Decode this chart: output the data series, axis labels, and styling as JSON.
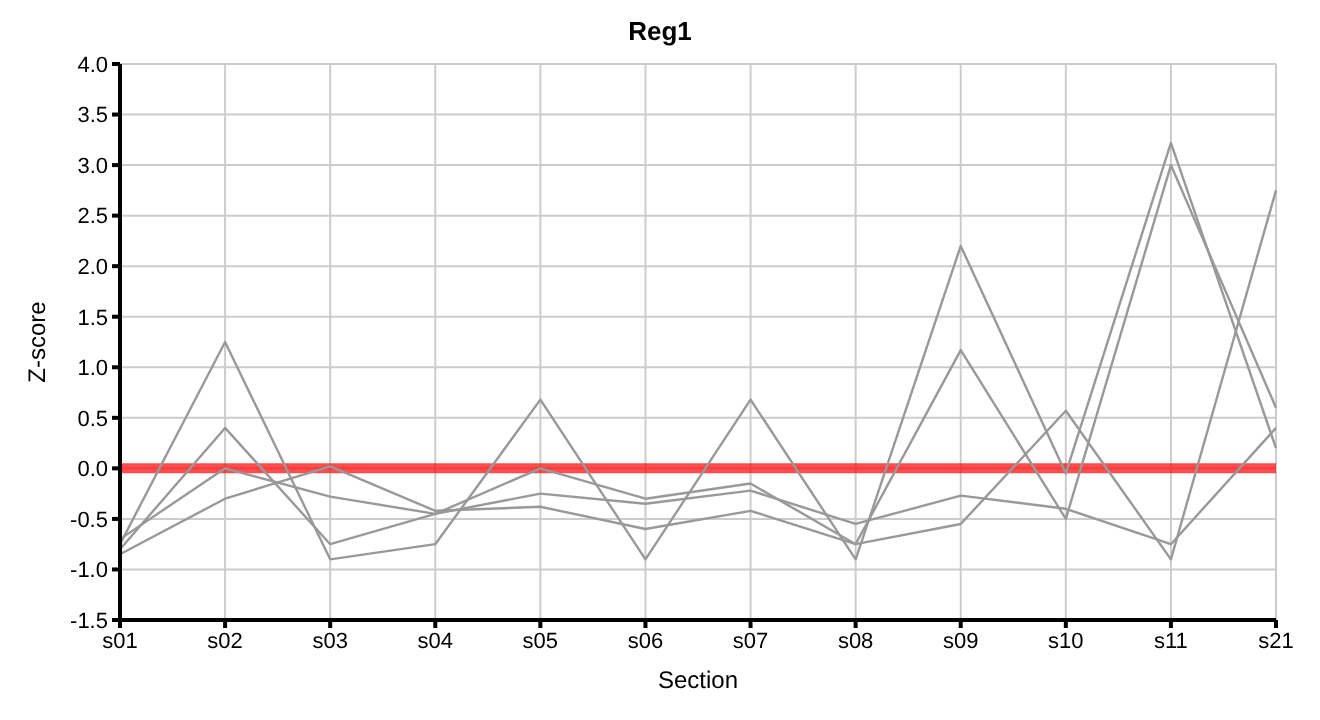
{
  "chart_data": {
    "type": "line",
    "title": "Reg1",
    "xlabel": "Section",
    "ylabel": "Z-score",
    "categories": [
      "s01",
      "s02",
      "s03",
      "s04",
      "s05",
      "s06",
      "s07",
      "s08",
      "s09",
      "s10",
      "s11",
      "s21"
    ],
    "series": [
      {
        "color": "#999999",
        "values": [
          -0.75,
          1.25,
          -0.9,
          -0.75,
          0.68,
          -0.9,
          0.68,
          -0.9,
          2.2,
          -0.05,
          3.22,
          0.2
        ]
      },
      {
        "color": "#999999",
        "values": [
          -0.8,
          0.4,
          -0.75,
          -0.45,
          0.0,
          -0.3,
          -0.15,
          -0.75,
          1.17,
          -0.5,
          3.0,
          0.6
        ]
      },
      {
        "color": "#999999",
        "values": [
          -0.7,
          0.0,
          -0.28,
          -0.45,
          -0.25,
          -0.35,
          -0.22,
          -0.55,
          -0.27,
          -0.4,
          -0.75,
          0.4
        ]
      },
      {
        "color": "#999999",
        "values": [
          -0.85,
          -0.3,
          0.02,
          -0.42,
          -0.38,
          -0.6,
          -0.42,
          -0.75,
          -0.55,
          0.57,
          -0.9,
          2.75
        ]
      }
    ],
    "ylim": [
      -1.5,
      4.0
    ],
    "yticks": [
      {
        "value": -1.5,
        "label": "-1.5"
      },
      {
        "value": -1,
        "label": "-1.0"
      },
      {
        "value": -0.5,
        "label": "-0.5"
      },
      {
        "value": 0,
        "label": "0.0"
      },
      {
        "value": 0.5,
        "label": "0.5"
      },
      {
        "value": 1,
        "label": "1.0"
      },
      {
        "value": 1.5,
        "label": "1.5"
      },
      {
        "value": 2,
        "label": "2.0"
      },
      {
        "value": 2.5,
        "label": "2.5"
      },
      {
        "value": 3,
        "label": "3.0"
      },
      {
        "value": 3.5,
        "label": "3.5"
      },
      {
        "value": 4,
        "label": "4.0"
      }
    ],
    "ref_lines": [
      {
        "axis": "y",
        "value": 0,
        "color": "#ff0000"
      }
    ],
    "grid": true,
    "marker": "none",
    "line_style": "solid"
  }
}
